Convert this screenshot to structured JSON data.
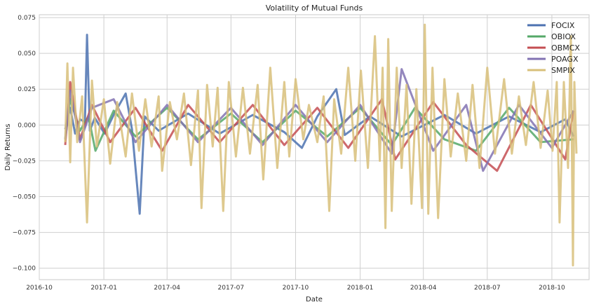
{
  "chart_data": {
    "type": "line",
    "title": "Volatility of Mutual Funds",
    "xlabel": "Date",
    "ylabel": "Daily Returns",
    "x_range": [
      "2016-10-01",
      "2018-11-23"
    ],
    "ylim": [
      -0.108,
      0.077
    ],
    "x_ticks": [
      {
        "date": "2016-10-01",
        "label": "2016-10"
      },
      {
        "date": "2017-01-01",
        "label": "2017-01"
      },
      {
        "date": "2017-04-01",
        "label": "2017-04"
      },
      {
        "date": "2017-07-01",
        "label": "2017-07"
      },
      {
        "date": "2017-10-01",
        "label": "2017-10"
      },
      {
        "date": "2018-01-01",
        "label": "2018-01"
      },
      {
        "date": "2018-04-01",
        "label": "2018-04"
      },
      {
        "date": "2018-07-01",
        "label": "2018-07"
      },
      {
        "date": "2018-10-01",
        "label": "2018-10"
      }
    ],
    "y_ticks": [
      {
        "value": 0.075,
        "label": "0.075"
      },
      {
        "value": 0.05,
        "label": "0.050"
      },
      {
        "value": 0.025,
        "label": "0.025"
      },
      {
        "value": 0.0,
        "label": "0.000"
      },
      {
        "value": -0.025,
        "label": "−0.025"
      },
      {
        "value": -0.05,
        "label": "−0.050"
      },
      {
        "value": -0.075,
        "label": "−0.075"
      },
      {
        "value": -0.1,
        "label": "−0.100"
      }
    ],
    "grid": true,
    "legend_position": "top-right",
    "series": [
      {
        "name": "FOCIX",
        "color": "#4c72b0",
        "points": [
          [
            "2016-11-07",
            -0.003
          ],
          [
            "2016-11-14",
            0.012
          ],
          [
            "2016-11-21",
            -0.006
          ],
          [
            "2016-11-28",
            0.004
          ],
          [
            "2016-12-05",
            0.002
          ],
          [
            "2016-12-08",
            0.063
          ],
          [
            "2016-12-12",
            -0.004
          ],
          [
            "2016-12-19",
            0.005
          ],
          [
            "2017-01-02",
            -0.006
          ],
          [
            "2017-01-16",
            0.008
          ],
          [
            "2017-02-01",
            0.022
          ],
          [
            "2017-02-10",
            -0.003
          ],
          [
            "2017-02-21",
            -0.062
          ],
          [
            "2017-02-28",
            0.006
          ],
          [
            "2017-03-20",
            -0.004
          ],
          [
            "2017-05-01",
            0.008
          ],
          [
            "2017-06-15",
            -0.006
          ],
          [
            "2017-08-01",
            0.007
          ],
          [
            "2017-09-15",
            -0.005
          ],
          [
            "2017-10-10",
            -0.016
          ],
          [
            "2017-11-01",
            0.006
          ],
          [
            "2017-11-28",
            0.025
          ],
          [
            "2017-12-10",
            -0.007
          ],
          [
            "2018-01-15",
            0.006
          ],
          [
            "2018-03-01",
            -0.008
          ],
          [
            "2018-05-01",
            0.007
          ],
          [
            "2018-06-15",
            -0.006
          ],
          [
            "2018-08-01",
            0.006
          ],
          [
            "2018-09-15",
            -0.005
          ],
          [
            "2018-10-20",
            0.004
          ],
          [
            "2018-11-01",
            -0.008
          ]
        ]
      },
      {
        "name": "OBIOX",
        "color": "#55a868",
        "points": [
          [
            "2016-11-07",
            -0.01
          ],
          [
            "2016-11-14",
            0.018
          ],
          [
            "2016-11-28",
            -0.004
          ],
          [
            "2016-12-10",
            0.006
          ],
          [
            "2016-12-20",
            -0.018
          ],
          [
            "2017-01-15",
            0.01
          ],
          [
            "2017-02-15",
            -0.008
          ],
          [
            "2017-04-01",
            0.012
          ],
          [
            "2017-05-15",
            -0.01
          ],
          [
            "2017-07-01",
            0.008
          ],
          [
            "2017-08-15",
            -0.012
          ],
          [
            "2017-10-01",
            0.01
          ],
          [
            "2017-11-15",
            -0.008
          ],
          [
            "2018-01-01",
            0.012
          ],
          [
            "2018-02-15",
            -0.014
          ],
          [
            "2018-03-20",
            0.012
          ],
          [
            "2018-05-01",
            -0.01
          ],
          [
            "2018-06-15",
            -0.018
          ],
          [
            "2018-08-01",
            0.012
          ],
          [
            "2018-09-15",
            -0.012
          ],
          [
            "2018-11-01",
            -0.01
          ]
        ]
      },
      {
        "name": "OBMCX",
        "color": "#c44e52",
        "points": [
          [
            "2016-11-07",
            -0.014
          ],
          [
            "2016-11-14",
            0.03
          ],
          [
            "2016-11-28",
            -0.01
          ],
          [
            "2016-12-15",
            0.014
          ],
          [
            "2017-01-10",
            -0.012
          ],
          [
            "2017-02-15",
            0.012
          ],
          [
            "2017-03-25",
            -0.018
          ],
          [
            "2017-05-01",
            0.014
          ],
          [
            "2017-06-15",
            -0.012
          ],
          [
            "2017-08-01",
            0.014
          ],
          [
            "2017-09-15",
            -0.014
          ],
          [
            "2017-11-01",
            0.012
          ],
          [
            "2017-12-15",
            -0.016
          ],
          [
            "2018-02-01",
            0.018
          ],
          [
            "2018-02-20",
            -0.024
          ],
          [
            "2018-04-15",
            0.016
          ],
          [
            "2018-06-01",
            -0.014
          ],
          [
            "2018-07-15",
            -0.032
          ],
          [
            "2018-09-01",
            0.014
          ],
          [
            "2018-10-20",
            -0.024
          ],
          [
            "2018-11-01",
            0.01
          ]
        ]
      },
      {
        "name": "POAGX",
        "color": "#8172b2",
        "points": [
          [
            "2016-11-07",
            -0.01
          ],
          [
            "2016-11-14",
            0.024
          ],
          [
            "2016-11-28",
            -0.012
          ],
          [
            "2016-12-15",
            0.012
          ],
          [
            "2017-01-15",
            0.018
          ],
          [
            "2017-02-15",
            -0.012
          ],
          [
            "2017-04-01",
            0.014
          ],
          [
            "2017-05-15",
            -0.012
          ],
          [
            "2017-07-01",
            0.012
          ],
          [
            "2017-08-15",
            -0.014
          ],
          [
            "2017-10-01",
            0.014
          ],
          [
            "2017-11-15",
            -0.012
          ],
          [
            "2018-01-01",
            0.014
          ],
          [
            "2018-02-15",
            -0.02
          ],
          [
            "2018-03-01",
            0.039
          ],
          [
            "2018-04-15",
            -0.018
          ],
          [
            "2018-06-01",
            0.014
          ],
          [
            "2018-06-25",
            -0.032
          ],
          [
            "2018-08-15",
            0.014
          ],
          [
            "2018-10-01",
            -0.016
          ],
          [
            "2018-11-01",
            0.01
          ]
        ]
      },
      {
        "name": "SMPIX",
        "color": "#d8c07a",
        "points": [
          [
            "2016-11-07",
            -0.012
          ],
          [
            "2016-11-10",
            0.043
          ],
          [
            "2016-11-14",
            -0.026
          ],
          [
            "2016-11-18",
            0.04
          ],
          [
            "2016-11-24",
            -0.012
          ],
          [
            "2016-12-01",
            0.02
          ],
          [
            "2016-12-08",
            -0.068
          ],
          [
            "2016-12-15",
            0.031
          ],
          [
            "2016-12-22",
            -0.015
          ],
          [
            "2017-01-01",
            0.018
          ],
          [
            "2017-01-10",
            -0.027
          ],
          [
            "2017-01-20",
            0.016
          ],
          [
            "2017-02-01",
            -0.022
          ],
          [
            "2017-02-10",
            0.022
          ],
          [
            "2017-02-20",
            -0.018
          ],
          [
            "2017-03-01",
            0.018
          ],
          [
            "2017-03-10",
            -0.015
          ],
          [
            "2017-03-20",
            0.02
          ],
          [
            "2017-03-25",
            -0.032
          ],
          [
            "2017-04-05",
            0.016
          ],
          [
            "2017-04-15",
            -0.01
          ],
          [
            "2017-04-25",
            0.022
          ],
          [
            "2017-05-05",
            -0.028
          ],
          [
            "2017-05-15",
            0.024
          ],
          [
            "2017-05-20",
            -0.058
          ],
          [
            "2017-05-28",
            0.028
          ],
          [
            "2017-06-05",
            -0.015
          ],
          [
            "2017-06-12",
            0.026
          ],
          [
            "2017-06-20",
            -0.06
          ],
          [
            "2017-06-28",
            0.03
          ],
          [
            "2017-07-08",
            -0.022
          ],
          [
            "2017-07-18",
            0.026
          ],
          [
            "2017-07-28",
            -0.02
          ],
          [
            "2017-08-08",
            0.028
          ],
          [
            "2017-08-16",
            -0.038
          ],
          [
            "2017-08-26",
            0.04
          ],
          [
            "2017-09-05",
            -0.03
          ],
          [
            "2017-09-15",
            0.03
          ],
          [
            "2017-09-22",
            -0.022
          ],
          [
            "2017-10-01",
            0.032
          ],
          [
            "2017-10-12",
            -0.01
          ],
          [
            "2017-10-20",
            0.014
          ],
          [
            "2017-11-01",
            -0.012
          ],
          [
            "2017-11-10",
            0.02
          ],
          [
            "2017-11-18",
            -0.06
          ],
          [
            "2017-11-25",
            0.018
          ],
          [
            "2017-12-05",
            -0.02
          ],
          [
            "2017-12-15",
            0.04
          ],
          [
            "2017-12-25",
            -0.025
          ],
          [
            "2018-01-02",
            0.038
          ],
          [
            "2018-01-12",
            -0.03
          ],
          [
            "2018-01-22",
            0.062
          ],
          [
            "2018-01-29",
            -0.025
          ],
          [
            "2018-02-02",
            0.04
          ],
          [
            "2018-02-06",
            -0.072
          ],
          [
            "2018-02-10",
            0.06
          ],
          [
            "2018-02-15",
            -0.06
          ],
          [
            "2018-02-22",
            0.04
          ],
          [
            "2018-03-01",
            -0.03
          ],
          [
            "2018-03-08",
            0.028
          ],
          [
            "2018-03-15",
            -0.055
          ],
          [
            "2018-03-22",
            0.025
          ],
          [
            "2018-03-30",
            -0.058
          ],
          [
            "2018-04-03",
            0.07
          ],
          [
            "2018-04-08",
            -0.062
          ],
          [
            "2018-04-14",
            0.04
          ],
          [
            "2018-04-22",
            -0.065
          ],
          [
            "2018-05-01",
            0.032
          ],
          [
            "2018-05-10",
            -0.022
          ],
          [
            "2018-05-20",
            0.022
          ],
          [
            "2018-06-01",
            -0.025
          ],
          [
            "2018-06-10",
            0.028
          ],
          [
            "2018-06-20",
            -0.03
          ],
          [
            "2018-07-01",
            0.04
          ],
          [
            "2018-07-12",
            -0.02
          ],
          [
            "2018-07-25",
            0.032
          ],
          [
            "2018-08-05",
            -0.02
          ],
          [
            "2018-08-15",
            0.02
          ],
          [
            "2018-08-25",
            -0.014
          ],
          [
            "2018-09-05",
            0.03
          ],
          [
            "2018-09-15",
            -0.016
          ],
          [
            "2018-09-25",
            0.024
          ],
          [
            "2018-10-02",
            -0.018
          ],
          [
            "2018-10-08",
            0.03
          ],
          [
            "2018-10-12",
            -0.068
          ],
          [
            "2018-10-18",
            0.03
          ],
          [
            "2018-10-24",
            -0.03
          ],
          [
            "2018-10-28",
            0.062
          ],
          [
            "2018-10-31",
            -0.098
          ],
          [
            "2018-11-02",
            0.03
          ],
          [
            "2018-11-05",
            -0.02
          ]
        ]
      }
    ]
  }
}
